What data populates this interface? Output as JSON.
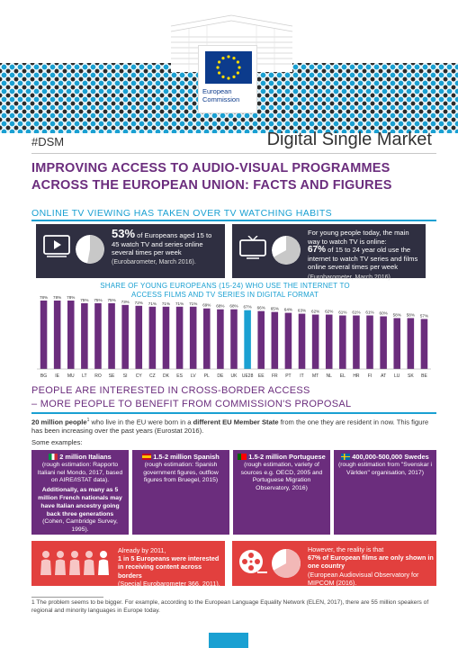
{
  "header": {
    "logo_text": "European Commission",
    "hashtag": "#DSM",
    "title": "Digital Single Market"
  },
  "main_title": "IMPROVING ACCESS TO AUDIO-VISUAL PROGRAMMES ACROSS THE EUROPEAN UNION: FACTS AND FIGURES",
  "section1": {
    "title": "ONLINE TV VIEWING HAS TAKEN OVER TV WATCHING HABITS",
    "card1": {
      "pct": "53%",
      "text_a": " of Europeans aged 15 to 45 watch TV and series online several times per week",
      "source": "(Eurobarometer, March 2016).",
      "pie_fraction": 0.53
    },
    "card2": {
      "lead": "For young people today, the main way to watch TV is online:",
      "pct": "67%",
      "text_a": " of 15 to 24 year old use the internet to watch TV series and films online several times per week",
      "source": " (Eurobarometer, March 2016).",
      "pie_fraction": 0.67
    }
  },
  "chart_data": {
    "type": "bar",
    "title": "SHARE OF YOUNG EUROPEANS (15-24) WHO USE THE INTERNET TO ACCESS FILMS AND TV SERIES IN DIGITAL FORMAT",
    "categories": [
      "BG",
      "IE",
      "MU",
      "LT",
      "RO",
      "SE",
      "SI",
      "CY",
      "CZ",
      "DK",
      "ES",
      "LV",
      "PL",
      "DE",
      "UK",
      "UE28",
      "EE",
      "FR",
      "PT",
      "IT",
      "MT",
      "NL",
      "EL",
      "HR",
      "FI",
      "AT",
      "LU",
      "SK",
      "BE"
    ],
    "values": [
      78,
      78,
      78,
      75,
      75,
      75,
      73,
      72,
      71,
      71,
      71,
      71,
      69,
      68,
      68,
      67,
      66,
      65,
      64,
      63,
      62,
      62,
      61,
      61,
      61,
      60,
      58,
      58,
      57
    ],
    "labels": [
      "78%",
      "78%",
      "78%",
      "75%",
      "75%",
      "75%",
      "73%",
      "72%",
      "71%",
      "71%",
      "71%",
      "71%",
      "69%",
      "68%",
      "68%",
      "67%",
      "66%",
      "65%",
      "64%",
      "63%",
      "62%",
      "62%",
      "61%",
      "61%",
      "61%",
      "60%",
      "58%",
      "58%",
      "57%"
    ],
    "highlight": "UE28",
    "bar_color": "#6b2d7d",
    "highlight_color": "#1aa0d2",
    "ylim": [
      0,
      80
    ]
  },
  "section2": {
    "title_line1": "PEOPLE ARE INTERESTED IN CROSS-BORDER ACCESS",
    "title_line2": "– MORE PEOPLE TO BENEFIT FROM COMMISSION'S PROPOSAL",
    "intro_bold1": "20 million people",
    "intro_sup": "1",
    "intro_mid": " who live in the EU were born in a ",
    "intro_bold2": "different EU Member State",
    "intro_rest": " from the one they are resident in now. This figure has been increasing over the past years (Eurostat 2016).",
    "examples": "Some examples:",
    "boxes": [
      {
        "header": "2 million Italians",
        "body": "(rough estimation: Rapporto Italiani nel Mondo, 2017, based on AIRE/ISTAT data).",
        "extra": "Additionally, as many as 5 million French nationals may have Italian ancestry going back three generations",
        "extra_src": "(Cohen, Cambridge Survey, 1995).",
        "flag": "italy"
      },
      {
        "header": "1.5-2 million Spanish",
        "body": "(rough estimation: Spanish government figures, outflow figures from Bruegel, 2015)",
        "flag": "spain"
      },
      {
        "header": "1.5-2 million Portuguese",
        "body": "(rough estimation, variety of sources e.g. OECD, 2005 and Portuguese Migration Observatory, 2016)",
        "flag": "portugal"
      },
      {
        "header": "400,000-500,000 Swedes",
        "body": "(rough estimation from \"Svenskar i Världen\" organisation, 2017)",
        "flag": "sweden"
      }
    ],
    "red1": {
      "line1": "Already by 2011,",
      "bold": "1 in 5 Europeans were interested in receiving content across borders",
      "src": "(Special Eurobarometer 366, 2011)."
    },
    "red2": {
      "line1": "However, the reality is that",
      "bold": "67% of European films are only shown in one country",
      "src": "(European Audiovisual Observatory for MIPCOM (2016).",
      "pie_fraction": 0.67
    }
  },
  "footnote": "1 The problem seems to be bigger. For example, according to the European Language Equality Network (ELEN, 2017), there are 55 million speakers of regional and minority languages in Europe today.",
  "colors": {
    "purple": "#6b2d7d",
    "blue": "#1aa0d2",
    "dark": "#2f2f41",
    "red": "#e2403e"
  }
}
